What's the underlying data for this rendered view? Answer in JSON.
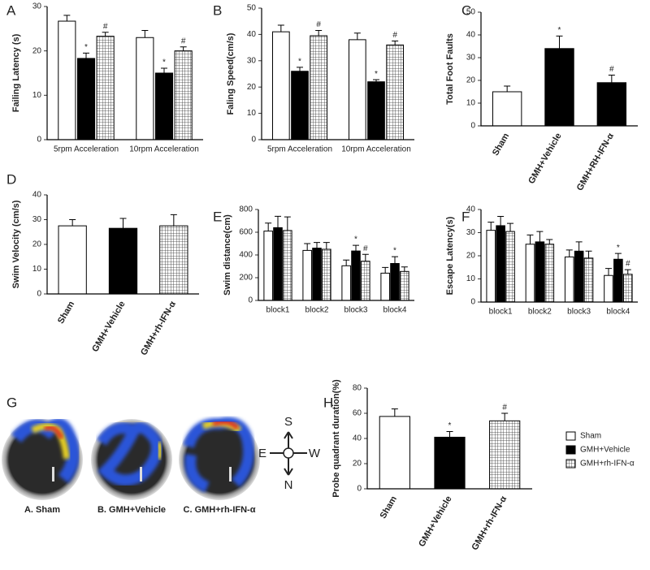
{
  "chart_data": [
    {
      "type": "bar",
      "label": "A",
      "ylabel": "Failing Latency (s)",
      "categories": [
        "5rpm Acceleration",
        "10rpm Acceleration"
      ],
      "ylim": [
        0,
        30
      ],
      "yticks": [
        0,
        10,
        20,
        30
      ],
      "series": [
        {
          "fill": "white",
          "values": [
            26.7,
            23
          ],
          "errors": [
            1.3,
            1.6
          ]
        },
        {
          "fill": "black",
          "values": [
            18.3,
            15
          ],
          "errors": [
            1.2,
            1.1
          ],
          "significance": [
            "*",
            "*"
          ]
        },
        {
          "fill": "grid",
          "values": [
            23.3,
            20
          ],
          "errors": [
            0.9,
            0.9
          ],
          "significance": [
            "#",
            "#"
          ]
        }
      ]
    },
    {
      "type": "bar",
      "label": "B",
      "ylabel": "Faling Speed(cm/s)",
      "categories": [
        "5rpm Acceleration",
        "10rpm Acceleration"
      ],
      "ylim": [
        0,
        50
      ],
      "yticks": [
        0,
        10,
        20,
        30,
        40,
        50
      ],
      "series": [
        {
          "fill": "white",
          "values": [
            41,
            38
          ],
          "errors": [
            2.5,
            2.5
          ]
        },
        {
          "fill": "black",
          "values": [
            26,
            22
          ],
          "errors": [
            1.5,
            0.8
          ],
          "significance": [
            "*",
            "*"
          ]
        },
        {
          "fill": "grid",
          "values": [
            39.5,
            36
          ],
          "errors": [
            2,
            1.5
          ],
          "significance": [
            "#",
            "#"
          ]
        }
      ]
    },
    {
      "type": "bar",
      "label": "C",
      "ylabel": "Total Foot Faults",
      "categories": [
        "Sham",
        "GMH+Vehicle",
        "GMH+RH-IFN-α"
      ],
      "ylim": [
        0,
        50
      ],
      "yticks": [
        0,
        10,
        20,
        30,
        40,
        50
      ],
      "values": [
        15,
        34,
        19
      ],
      "errors": [
        2.5,
        5.5,
        3.3
      ],
      "fills": [
        "white",
        "black",
        "black"
      ],
      "significance": [
        null,
        "*",
        "#"
      ]
    },
    {
      "type": "bar",
      "label": "D",
      "ylabel": "Swim Velocity (cm/s)",
      "categories": [
        "Sham",
        "GMH+Vehicle",
        "GMH+rh-IFN-α"
      ],
      "ylim": [
        0,
        40
      ],
      "yticks": [
        0,
        10,
        20,
        30,
        40
      ],
      "values": [
        27.5,
        26.5,
        27.5
      ],
      "errors": [
        2.5,
        4,
        4.5
      ],
      "fills": [
        "white",
        "black",
        "grid"
      ]
    },
    {
      "type": "bar",
      "label": "E",
      "ylabel": "Swim distance(cm)",
      "categories": [
        "block1",
        "block2",
        "block3",
        "block4"
      ],
      "ylim": [
        0,
        800
      ],
      "yticks": [
        0,
        200,
        400,
        600,
        800
      ],
      "series": [
        {
          "fill": "white",
          "values": [
            610,
            440,
            305,
            240
          ],
          "errors": [
            70,
            60,
            50,
            50
          ]
        },
        {
          "fill": "black",
          "values": [
            640,
            460,
            435,
            325
          ],
          "errors": [
            100,
            50,
            50,
            60
          ],
          "significance": [
            null,
            null,
            "*",
            "*"
          ]
        },
        {
          "fill": "grid",
          "values": [
            615,
            450,
            345,
            255
          ],
          "errors": [
            120,
            60,
            60,
            40
          ],
          "significance": [
            null,
            null,
            "#",
            null
          ]
        }
      ]
    },
    {
      "type": "bar",
      "label": "F",
      "ylabel": "Escape Latency(s)",
      "categories": [
        "block1",
        "block2",
        "block3",
        "block4"
      ],
      "ylim": [
        0,
        40
      ],
      "yticks": [
        0,
        10,
        20,
        30,
        40
      ],
      "series": [
        {
          "fill": "white",
          "values": [
            31,
            25,
            19.5,
            11.5
          ],
          "errors": [
            3.5,
            4,
            3,
            3
          ]
        },
        {
          "fill": "black",
          "values": [
            33,
            26,
            22,
            18.5
          ],
          "errors": [
            4,
            4.5,
            4,
            2.5
          ],
          "significance": [
            null,
            null,
            null,
            "*"
          ]
        },
        {
          "fill": "grid",
          "values": [
            30.5,
            25,
            19,
            12
          ],
          "errors": [
            3.5,
            2,
            3,
            2
          ],
          "significance": [
            null,
            null,
            null,
            "#"
          ]
        }
      ]
    },
    {
      "type": "bar",
      "label": "H",
      "ylabel": "Probe quadrant duration(%)",
      "categories": [
        "Sham",
        "GMH+Vehicle",
        "GMH+rh-IFN-α"
      ],
      "ylim": [
        0,
        80
      ],
      "yticks": [
        0,
        20,
        40,
        60,
        80
      ],
      "values": [
        57.5,
        41,
        54
      ],
      "errors": [
        6,
        4.5,
        6
      ],
      "fills": [
        "white",
        "black",
        "grid"
      ],
      "significance": [
        null,
        "*",
        "#"
      ],
      "legend": [
        "Sham",
        "GMH+Vehicle",
        "GMH+rh-IFN-α"
      ],
      "legend_fills": [
        "white",
        "black",
        "grid"
      ]
    }
  ],
  "figure_g": {
    "label": "G",
    "captions": [
      "A. Sham",
      "B. GMH+Vehicle",
      "C. GMH+rh-IFN-α"
    ],
    "compass": {
      "top": "S",
      "left": "E",
      "right": "W",
      "bottom": "N"
    }
  }
}
